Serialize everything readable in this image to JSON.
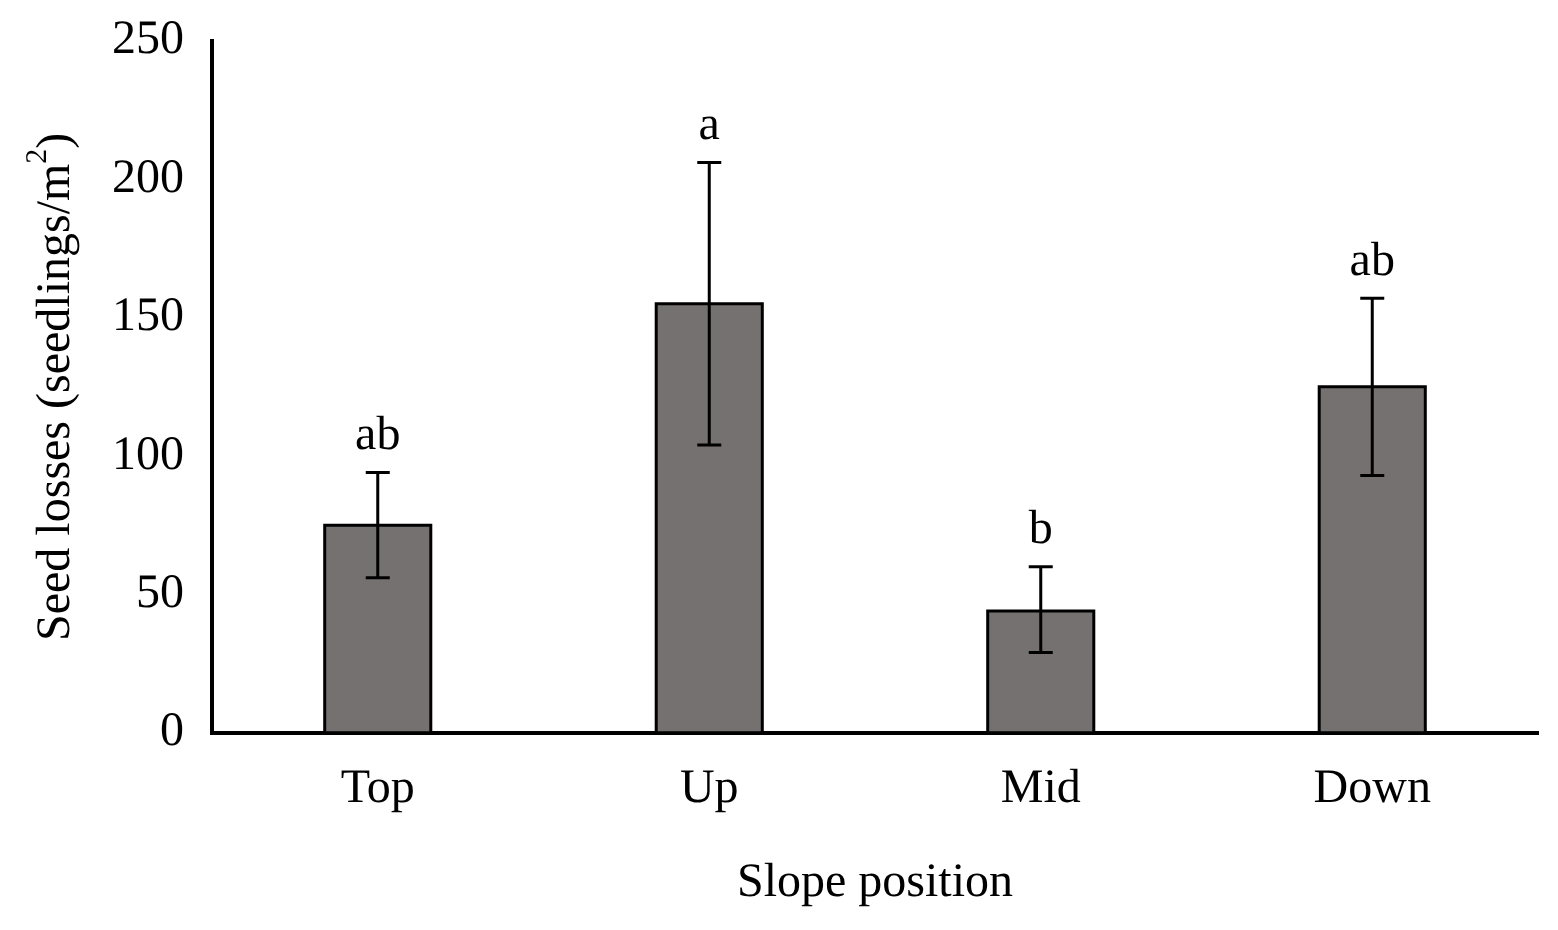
{
  "chart_data": {
    "type": "bar",
    "xlabel": "Slope position",
    "ylabel": "Seed losses (seedlings/m$^{2}$)",
    "categories": [
      "Top",
      "Up",
      "Mid",
      "Down"
    ],
    "values": [
      75,
      155,
      44,
      125
    ],
    "color": "#767171",
    "errors": [
      [
        56,
        94
      ],
      [
        104,
        206
      ],
      [
        29,
        60
      ],
      [
        93,
        157
      ]
    ],
    "ylim": [
      0,
      250
    ],
    "yticks": [
      0,
      50,
      100,
      150,
      200,
      250
    ],
    "grid": false,
    "legend": false,
    "annotations": [
      {
        "text": "ab",
        "x": "Top",
        "y": 94
      },
      {
        "text": "a",
        "x": "Up",
        "y": 206
      },
      {
        "text": "b",
        "x": "Mid",
        "y": 60
      },
      {
        "text": "ab",
        "x": "Down",
        "y": 157
      }
    ]
  }
}
